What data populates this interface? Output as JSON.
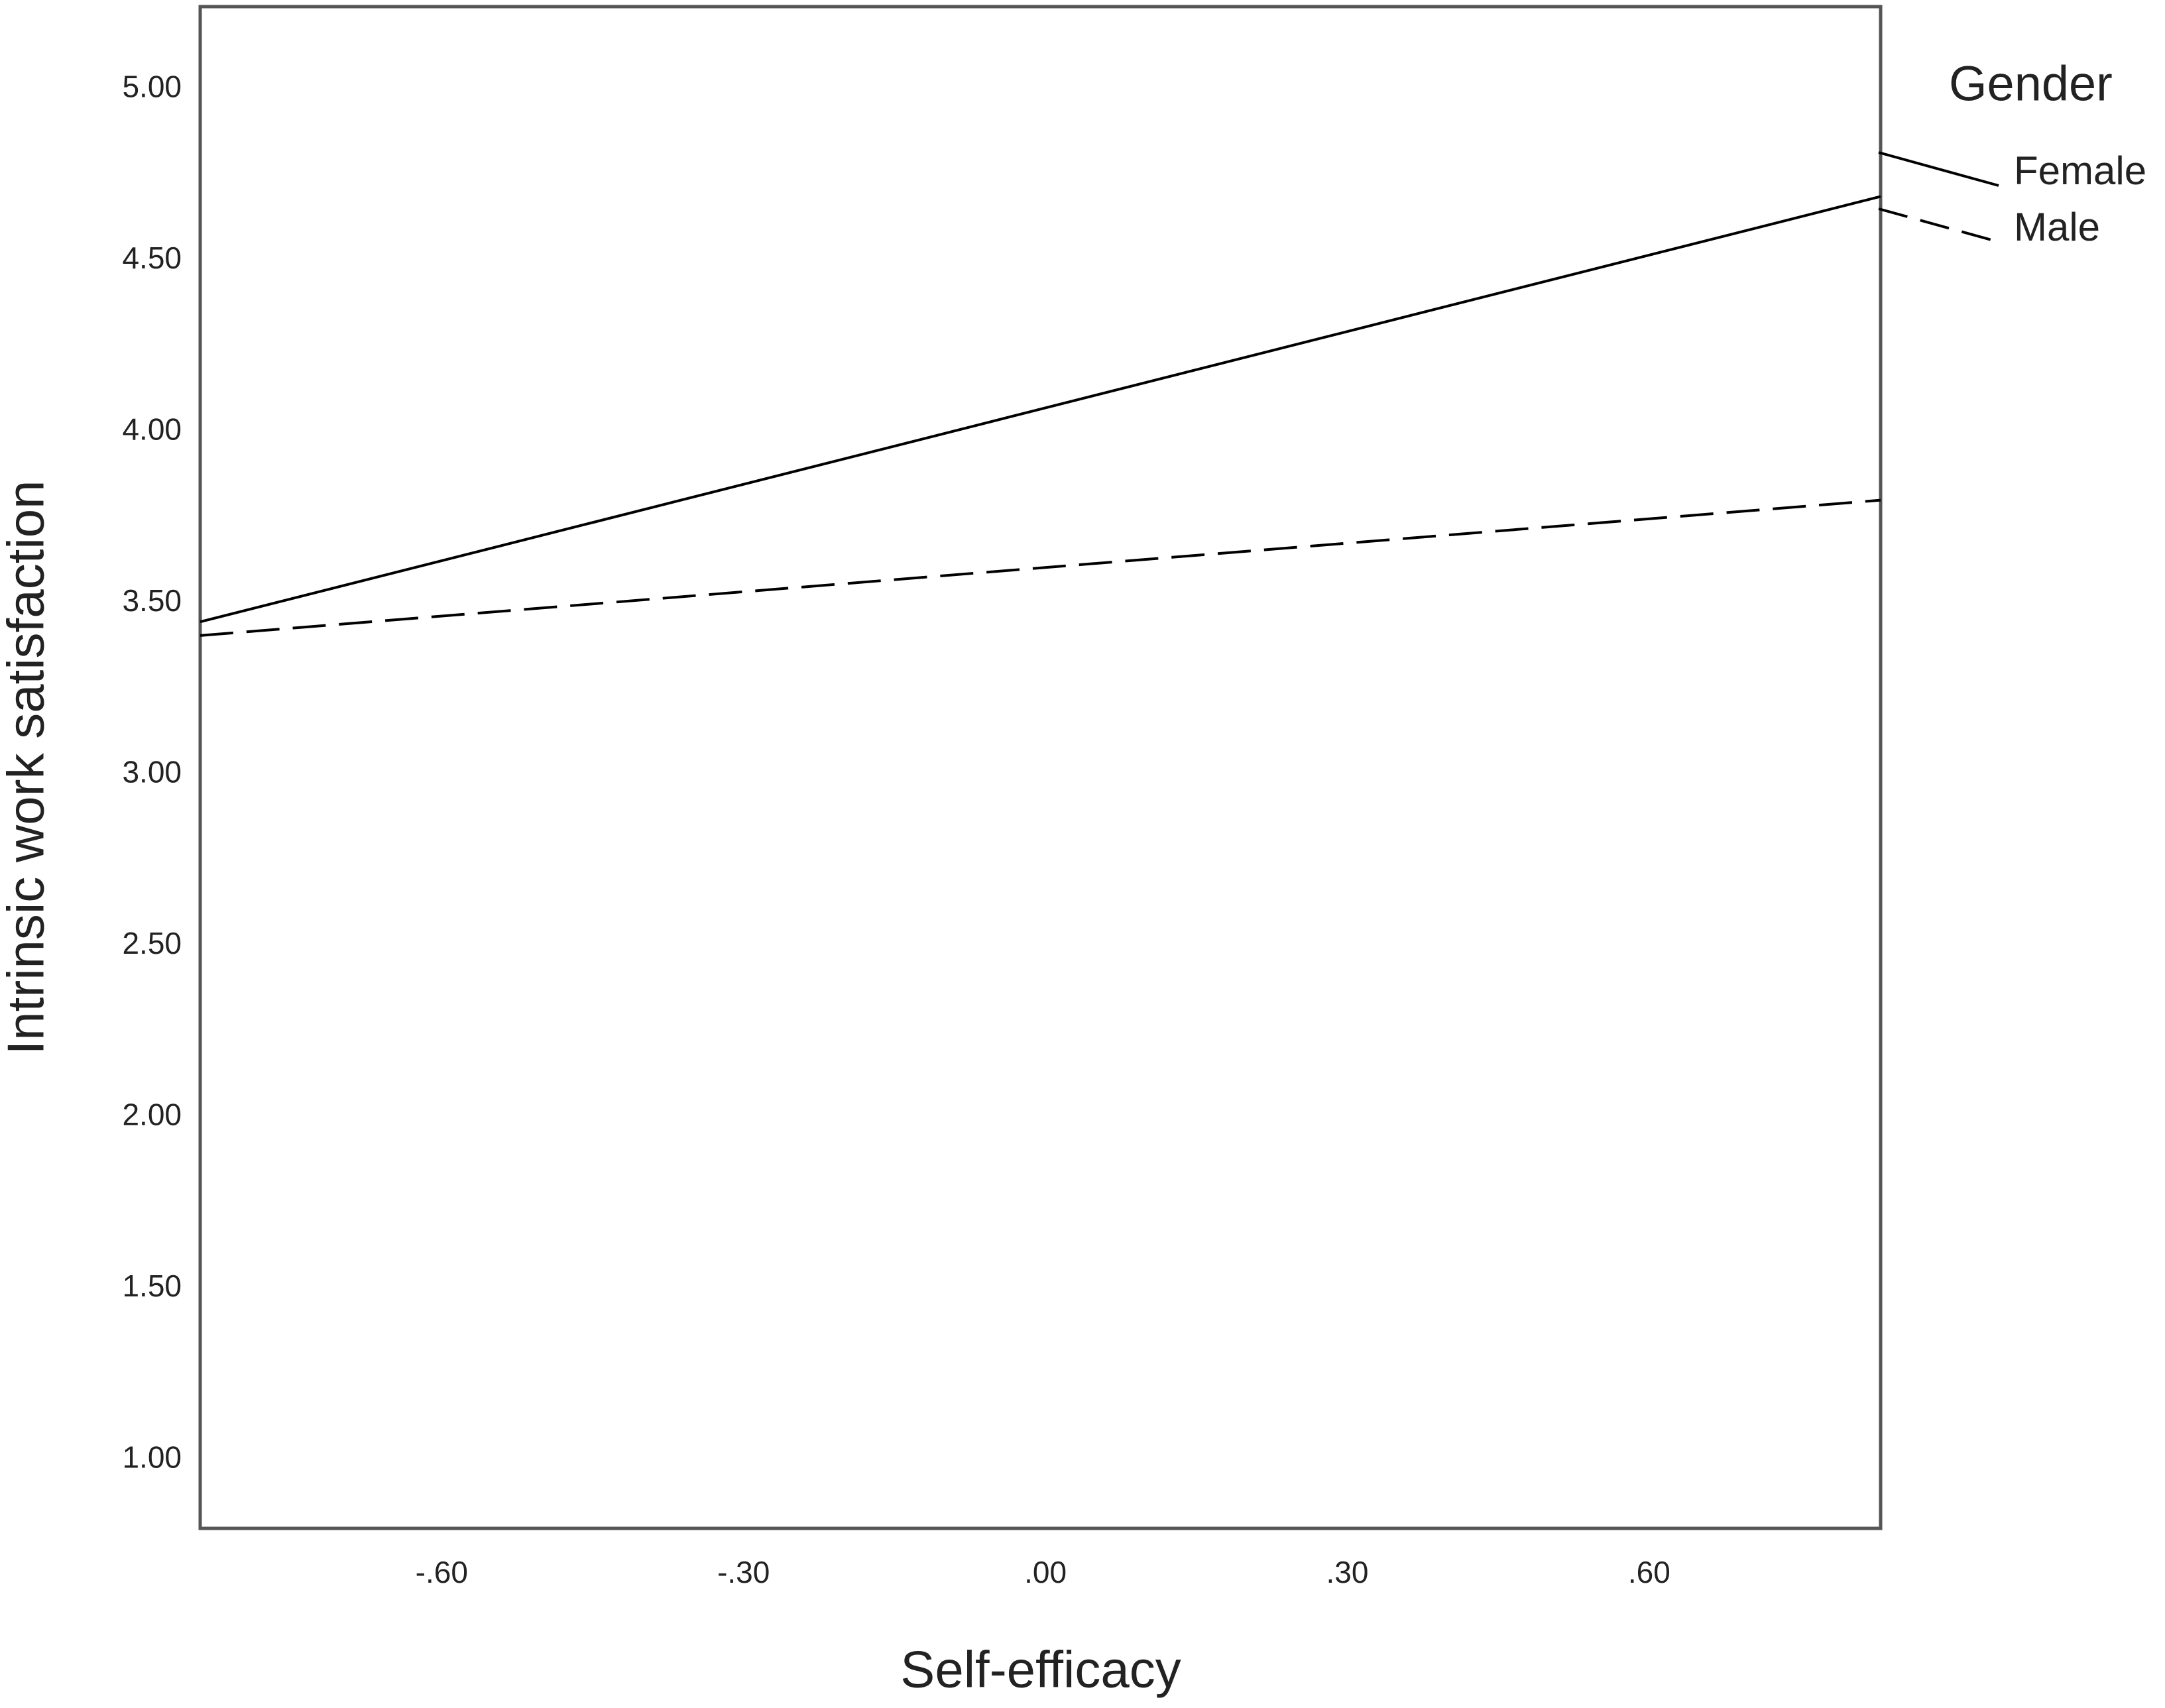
{
  "chart_data": {
    "type": "line",
    "x_label": "Self-efficacy",
    "y_label": "Intrinsic work satisfaction",
    "legend_title": "Gender",
    "x": [
      -0.84,
      0.83
    ],
    "series": [
      {
        "name": "Female",
        "color": "#000000",
        "style": "solid",
        "values": [
          3.445,
          4.686
        ]
      },
      {
        "name": "Male",
        "color": "#000000",
        "style": "dashed",
        "values": [
          3.405,
          3.8
        ]
      }
    ],
    "xlim": [
      -0.84,
      0.83
    ],
    "ylim": [
      0.8,
      5.24
    ],
    "xticks": [
      {
        "value": -0.6,
        "label": "-.60"
      },
      {
        "value": -0.3,
        "label": "-.30"
      },
      {
        "value": 0,
        "label": ".00"
      },
      {
        "value": 0.3,
        "label": ".30"
      },
      {
        "value": 0.6,
        "label": ".60"
      }
    ],
    "yticks": [
      {
        "value": 1,
        "label": "1.00"
      },
      {
        "value": 1.5,
        "label": "1.50"
      },
      {
        "value": 2,
        "label": "2.00"
      },
      {
        "value": 2.5,
        "label": "2.50"
      },
      {
        "value": 3,
        "label": "3.00"
      },
      {
        "value": 3.5,
        "label": "3.50"
      },
      {
        "value": 4,
        "label": "4.00"
      },
      {
        "value": 4.5,
        "label": "4.50"
      },
      {
        "value": 5,
        "label": "5.00"
      }
    ],
    "legend_position": "right",
    "grid": false
  }
}
